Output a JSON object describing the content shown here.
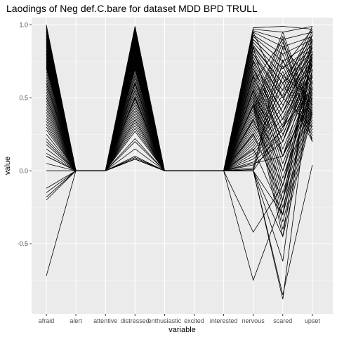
{
  "chart_data": {
    "type": "line",
    "title": "Laodings of Neg def.C.bare for dataset MDD BPD TRULL",
    "xlabel": "variable",
    "ylabel": "value",
    "categories": [
      "afraid",
      "alert",
      "attentive",
      "distressed",
      "enthusiastic",
      "excited",
      "interested",
      "nervous",
      "scared",
      "upset"
    ],
    "ylim": [
      -0.98,
      1.05
    ],
    "yticks": [
      -0.5,
      0.0,
      0.5,
      1.0
    ],
    "ytick_labels": [
      "-0.5",
      "0.0",
      "0.5",
      "1.0"
    ],
    "grid": true,
    "legend": "none",
    "colors": {
      "panel": "#ebebeb",
      "grid_major": "#ffffff",
      "grid_minor": "#f5f5f5",
      "line": "#000000"
    },
    "series": [
      {
        "values": [
          1.0,
          0,
          0,
          0.99,
          0,
          0,
          0,
          0.98,
          0.99,
          0.97
        ]
      },
      {
        "values": [
          0.99,
          0,
          0,
          0.98,
          0,
          0,
          0,
          0.97,
          0.95,
          0.99
        ]
      },
      {
        "values": [
          0.98,
          0,
          0,
          0.97,
          0,
          0,
          0,
          0.96,
          0.9,
          0.95
        ]
      },
      {
        "values": [
          0.97,
          0,
          0,
          0.96,
          0,
          0,
          0,
          0.95,
          0.85,
          0.92
        ]
      },
      {
        "values": [
          0.96,
          0,
          0,
          0.95,
          0,
          0,
          0,
          0.93,
          0.8,
          0.9
        ]
      },
      {
        "values": [
          0.95,
          0,
          0,
          0.94,
          0,
          0,
          0,
          0.92,
          0.75,
          0.88
        ]
      },
      {
        "values": [
          0.94,
          0,
          0,
          0.93,
          0,
          0,
          0,
          0.9,
          0.7,
          0.86
        ]
      },
      {
        "values": [
          0.93,
          0,
          0,
          0.92,
          0,
          0,
          0,
          0.88,
          0.65,
          0.84
        ]
      },
      {
        "values": [
          0.92,
          0,
          0,
          0.91,
          0,
          0,
          0,
          0.86,
          0.6,
          0.82
        ]
      },
      {
        "values": [
          0.91,
          0,
          0,
          0.9,
          0,
          0,
          0,
          0.84,
          0.55,
          0.8
        ]
      },
      {
        "values": [
          0.9,
          0,
          0,
          0.89,
          0,
          0,
          0,
          0.82,
          0.5,
          0.78
        ]
      },
      {
        "values": [
          0.89,
          0,
          0,
          0.88,
          0,
          0,
          0,
          0.8,
          0.45,
          0.76
        ]
      },
      {
        "values": [
          0.88,
          0,
          0,
          0.87,
          0,
          0,
          0,
          0.78,
          0.4,
          0.74
        ]
      },
      {
        "values": [
          0.87,
          0,
          0,
          0.86,
          0,
          0,
          0,
          0.76,
          0.35,
          0.72
        ]
      },
      {
        "values": [
          0.86,
          0,
          0,
          0.85,
          0,
          0,
          0,
          0.74,
          0.3,
          0.7
        ]
      },
      {
        "values": [
          0.85,
          0,
          0,
          0.84,
          0,
          0,
          0,
          0.72,
          0.25,
          0.68
        ]
      },
      {
        "values": [
          0.84,
          0,
          0,
          0.83,
          0,
          0,
          0,
          0.7,
          0.2,
          0.66
        ]
      },
      {
        "values": [
          0.83,
          0,
          0,
          0.82,
          0,
          0,
          0,
          0.68,
          0.15,
          0.64
        ]
      },
      {
        "values": [
          0.82,
          0,
          0,
          0.81,
          0,
          0,
          0,
          0.66,
          0.1,
          0.62
        ]
      },
      {
        "values": [
          0.81,
          0,
          0,
          0.8,
          0,
          0,
          0,
          0.64,
          0.05,
          0.6
        ]
      },
      {
        "values": [
          0.8,
          0,
          0,
          0.79,
          0,
          0,
          0,
          0.62,
          0.0,
          0.58
        ]
      },
      {
        "values": [
          0.79,
          0,
          0,
          0.78,
          0,
          0,
          0,
          0.6,
          -0.05,
          0.56
        ]
      },
      {
        "values": [
          0.78,
          0,
          0,
          0.77,
          0,
          0,
          0,
          0.58,
          -0.1,
          0.54
        ]
      },
      {
        "values": [
          0.77,
          0,
          0,
          0.76,
          0,
          0,
          0,
          0.56,
          -0.15,
          0.52
        ]
      },
      {
        "values": [
          0.76,
          0,
          0,
          0.75,
          0,
          0,
          0,
          0.54,
          -0.2,
          0.5
        ]
      },
      {
        "values": [
          0.75,
          0,
          0,
          0.74,
          0,
          0,
          0,
          0.52,
          -0.25,
          0.48
        ]
      },
      {
        "values": [
          0.74,
          0,
          0,
          0.73,
          0,
          0,
          0,
          0.5,
          -0.3,
          0.46
        ]
      },
      {
        "values": [
          0.73,
          0,
          0,
          0.72,
          0,
          0,
          0,
          0.48,
          -0.35,
          0.44
        ]
      },
      {
        "values": [
          0.72,
          0,
          0,
          0.71,
          0,
          0,
          0,
          0.46,
          -0.4,
          0.42
        ]
      },
      {
        "values": [
          0.71,
          0,
          0,
          0.7,
          0,
          0,
          0,
          0.44,
          -0.45,
          0.4
        ]
      },
      {
        "values": [
          0.7,
          0,
          0,
          0.69,
          0,
          0,
          0,
          0.42,
          0.95,
          0.38
        ]
      },
      {
        "values": [
          0.68,
          0,
          0,
          0.67,
          0,
          0,
          0,
          0.4,
          0.92,
          0.36
        ]
      },
      {
        "values": [
          0.66,
          0,
          0,
          0.65,
          0,
          0,
          0,
          0.38,
          0.88,
          0.34
        ]
      },
      {
        "values": [
          0.64,
          0,
          0,
          0.63,
          0,
          0,
          0,
          0.36,
          0.84,
          0.32
        ]
      },
      {
        "values": [
          0.62,
          0,
          0,
          0.61,
          0,
          0,
          0,
          0.34,
          0.8,
          0.3
        ]
      },
      {
        "values": [
          0.6,
          0,
          0,
          0.59,
          0,
          0,
          0,
          0.32,
          0.76,
          0.28
        ]
      },
      {
        "values": [
          0.58,
          0,
          0,
          0.57,
          0,
          0,
          0,
          0.3,
          0.72,
          0.26
        ]
      },
      {
        "values": [
          0.56,
          0,
          0,
          0.55,
          0,
          0,
          0,
          0.28,
          0.68,
          0.24
        ]
      },
      {
        "values": [
          0.54,
          0,
          0,
          0.53,
          0,
          0,
          0,
          0.26,
          0.64,
          0.22
        ]
      },
      {
        "values": [
          0.52,
          0,
          0,
          0.51,
          0,
          0,
          0,
          0.24,
          0.6,
          0.2
        ]
      },
      {
        "values": [
          0.5,
          0,
          0,
          0.49,
          0,
          0,
          0,
          0.22,
          0.56,
          0.99
        ]
      },
      {
        "values": [
          0.48,
          0,
          0,
          0.47,
          0,
          0,
          0,
          0.2,
          0.52,
          0.96
        ]
      },
      {
        "values": [
          0.46,
          0,
          0,
          0.45,
          0,
          0,
          0,
          0.18,
          0.48,
          0.93
        ]
      },
      {
        "values": [
          0.44,
          0,
          0,
          0.43,
          0,
          0,
          0,
          0.16,
          0.44,
          0.9
        ]
      },
      {
        "values": [
          0.42,
          0,
          0,
          0.41,
          0,
          0,
          0,
          0.14,
          0.4,
          0.87
        ]
      },
      {
        "values": [
          0.4,
          0,
          0,
          0.39,
          0,
          0,
          0,
          0.12,
          0.36,
          0.84
        ]
      },
      {
        "values": [
          0.38,
          0,
          0,
          0.37,
          0,
          0,
          0,
          0.1,
          0.32,
          0.81
        ]
      },
      {
        "values": [
          0.36,
          0,
          0,
          0.35,
          0,
          0,
          0,
          0.08,
          0.28,
          0.78
        ]
      },
      {
        "values": [
          0.34,
          0,
          0,
          0.33,
          0,
          0,
          0,
          0.06,
          0.24,
          0.75
        ]
      },
      {
        "values": [
          0.32,
          0,
          0,
          0.31,
          0,
          0,
          0,
          0.04,
          0.2,
          0.72
        ]
      },
      {
        "values": [
          0.3,
          0,
          0,
          0.29,
          0,
          0,
          0,
          0.9,
          0.7,
          0.97
        ]
      },
      {
        "values": [
          0.28,
          0,
          0,
          0.27,
          0,
          0,
          0,
          0.85,
          0.6,
          0.93
        ]
      },
      {
        "values": [
          0.25,
          0,
          0,
          0.22,
          0,
          0,
          0,
          0.8,
          0.5,
          0.89
        ]
      },
      {
        "values": [
          0.22,
          0,
          0,
          0.2,
          0,
          0,
          0,
          0.75,
          0.4,
          0.85
        ]
      },
      {
        "values": [
          0.18,
          0,
          0,
          0.15,
          0,
          0,
          0,
          0.7,
          0.3,
          0.81
        ]
      },
      {
        "values": [
          0.15,
          0,
          0,
          0.1,
          0,
          0,
          0,
          0.65,
          0.2,
          0.77
        ]
      },
      {
        "values": [
          0.12,
          0,
          0,
          0.09,
          0,
          0,
          0,
          0.55,
          0.1,
          0.73
        ]
      },
      {
        "values": [
          0.1,
          0,
          0,
          0.09,
          0,
          0,
          0,
          0.45,
          0.0,
          0.69
        ]
      },
      {
        "values": [
          0.05,
          0,
          0,
          0.08,
          0,
          0,
          0,
          0.35,
          -0.1,
          0.65
        ]
      },
      {
        "values": [
          0.0,
          0,
          0,
          0.08,
          0,
          0,
          0,
          0.25,
          -0.2,
          0.61
        ]
      },
      {
        "values": [
          0.0,
          0,
          0,
          0.08,
          0,
          0,
          0,
          0.15,
          -0.3,
          0.57
        ]
      },
      {
        "values": [
          -0.12,
          0,
          0,
          0.08,
          0,
          0,
          0,
          0.05,
          0.1,
          0.53
        ]
      },
      {
        "values": [
          -0.15,
          0,
          0,
          0.08,
          0,
          0,
          0,
          0.0,
          0.65,
          0.49
        ]
      },
      {
        "values": [
          -0.18,
          0,
          0,
          0.08,
          0,
          0,
          0,
          0.02,
          0.75,
          0.45
        ]
      },
      {
        "values": [
          -0.2,
          0,
          0,
          0.08,
          0,
          0,
          0,
          0.01,
          0.85,
          0.6
        ]
      },
      {
        "values": [
          -0.72,
          0,
          0,
          0.35,
          0,
          0,
          0,
          0.0,
          0.3,
          0.55
        ]
      },
      {
        "values": [
          0.2,
          0,
          0,
          0.35,
          0,
          0,
          0,
          -0.75,
          -0.2,
          0.82
        ]
      },
      {
        "values": [
          0.1,
          0,
          0,
          0.55,
          0,
          0,
          0,
          -0.42,
          -0.1,
          0.75
        ]
      },
      {
        "values": [
          0.6,
          0,
          0,
          0.6,
          0,
          0,
          0,
          0.0,
          -0.85,
          0.04
        ]
      },
      {
        "values": [
          0.8,
          0,
          0,
          0.7,
          0,
          0,
          0,
          0.0,
          -0.88,
          0.7
        ]
      },
      {
        "values": [
          0.9,
          0,
          0,
          0.8,
          0,
          0,
          0,
          0.0,
          -0.62,
          0.9
        ]
      },
      {
        "values": [
          0.7,
          0,
          0,
          0.75,
          0,
          0,
          0,
          0.0,
          -0.45,
          0.8
        ]
      },
      {
        "values": [
          0.5,
          0,
          0,
          0.65,
          0,
          0,
          0,
          0.0,
          -0.3,
          0.95
        ]
      },
      {
        "values": [
          0.6,
          0,
          0,
          0.5,
          0,
          0,
          0,
          0.6,
          0.9,
          0.2
        ]
      },
      {
        "values": [
          0.85,
          0,
          0,
          0.9,
          0,
          0,
          0,
          0.85,
          0.1,
          0.5
        ]
      },
      {
        "values": [
          0.95,
          0,
          0,
          0.85,
          0,
          0,
          0,
          0.95,
          0.5,
          0.3
        ]
      }
    ]
  }
}
